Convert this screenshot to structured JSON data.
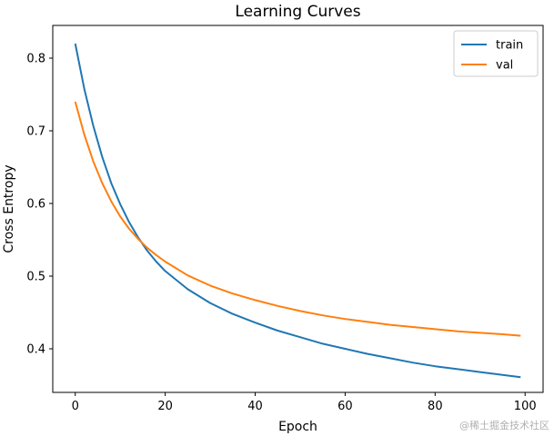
{
  "chart_data": {
    "type": "line",
    "title": "Learning Curves",
    "xlabel": "Epoch",
    "ylabel": "Cross Entropy",
    "xlim": [
      -5,
      104
    ],
    "ylim": [
      0.34,
      0.845
    ],
    "x_ticks": [
      0,
      20,
      40,
      60,
      80,
      100
    ],
    "y_ticks": [
      0.4,
      0.5,
      0.6,
      0.7,
      0.8
    ],
    "y_tick_labels": [
      "0.4",
      "0.5",
      "0.6",
      "0.7",
      "0.8"
    ],
    "grid": false,
    "legend_position": "top-right",
    "series": [
      {
        "name": "train",
        "color": "#1f77b4",
        "x": [
          0,
          2,
          4,
          6,
          8,
          10,
          12,
          14,
          16,
          18,
          20,
          25,
          30,
          35,
          40,
          45,
          50,
          55,
          60,
          65,
          70,
          75,
          80,
          85,
          90,
          95,
          99
        ],
        "y": [
          0.82,
          0.758,
          0.707,
          0.664,
          0.628,
          0.599,
          0.574,
          0.553,
          0.535,
          0.52,
          0.507,
          0.482,
          0.463,
          0.448,
          0.436,
          0.425,
          0.416,
          0.407,
          0.4,
          0.393,
          0.387,
          0.381,
          0.376,
          0.372,
          0.368,
          0.364,
          0.361
        ]
      },
      {
        "name": "val",
        "color": "#ff7f0e",
        "x": [
          0,
          2,
          4,
          6,
          8,
          10,
          12,
          14,
          16,
          18,
          20,
          25,
          30,
          35,
          40,
          45,
          50,
          55,
          60,
          65,
          70,
          75,
          80,
          85,
          90,
          95,
          99
        ],
        "y": [
          0.74,
          0.695,
          0.658,
          0.628,
          0.603,
          0.582,
          0.565,
          0.551,
          0.539,
          0.529,
          0.52,
          0.501,
          0.487,
          0.476,
          0.467,
          0.459,
          0.452,
          0.446,
          0.441,
          0.437,
          0.433,
          0.43,
          0.427,
          0.424,
          0.422,
          0.42,
          0.418
        ]
      }
    ]
  },
  "watermark": {
    "text": "@稀土掘金技术社区"
  }
}
